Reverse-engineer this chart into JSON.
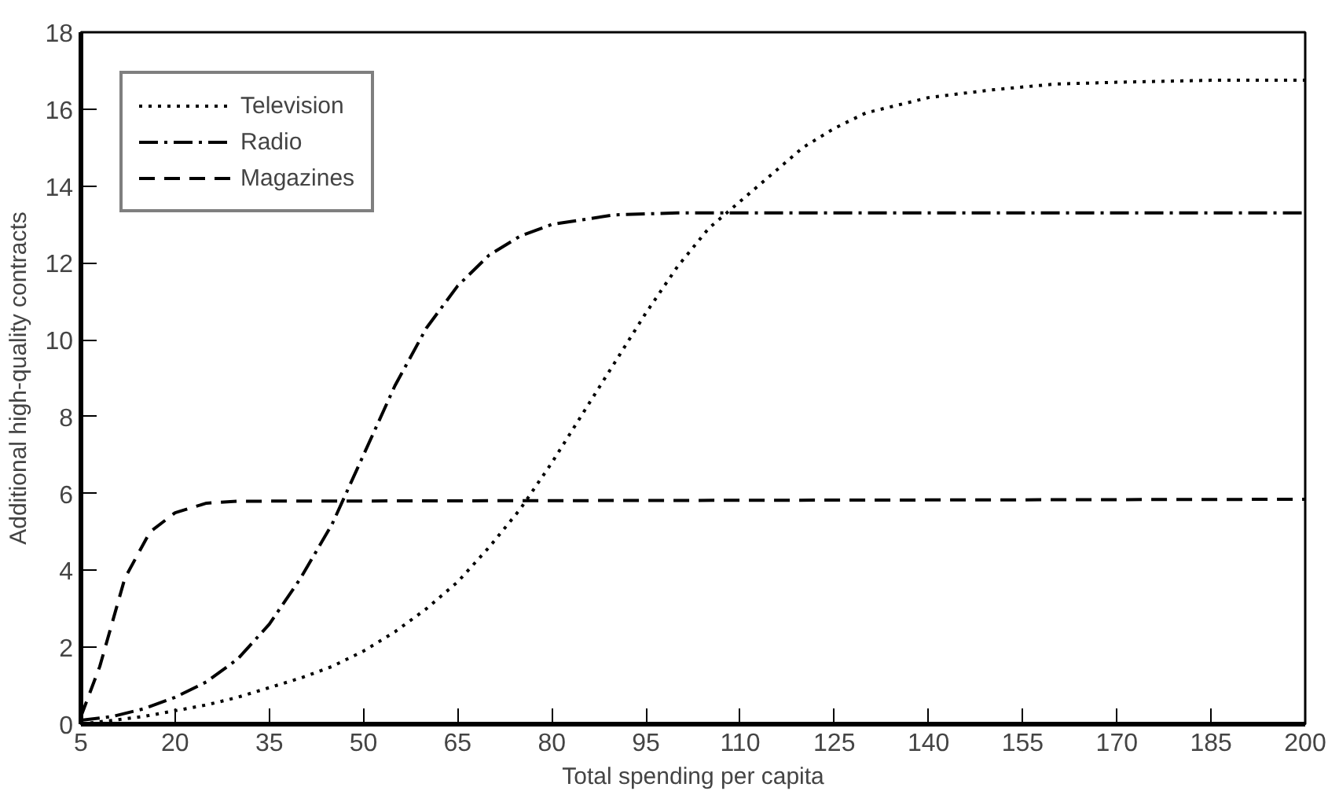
{
  "chart_data": {
    "type": "line",
    "xlabel": "Total spending per capita",
    "ylabel": "Additional high-quality contracts",
    "xlim": [
      5,
      200
    ],
    "ylim": [
      0,
      18
    ],
    "xticks": [
      5,
      20,
      35,
      50,
      65,
      80,
      95,
      110,
      125,
      140,
      155,
      170,
      185,
      200
    ],
    "yticks": [
      0,
      2,
      4,
      6,
      8,
      10,
      12,
      14,
      16,
      18
    ],
    "grid": false,
    "legend": "top left",
    "marker": "none",
    "series": [
      {
        "name": "Television",
        "color": "#000000",
        "line_style": "dotted",
        "x": [
          5,
          15,
          20,
          25,
          30,
          35,
          40,
          45,
          50,
          55,
          60,
          65,
          70,
          75,
          80,
          85,
          90,
          95,
          100,
          105,
          110,
          115,
          120,
          125,
          130,
          140,
          150,
          160,
          170,
          185,
          200
        ],
        "values": [
          0,
          0.2,
          0.35,
          0.5,
          0.7,
          0.95,
          1.2,
          1.5,
          1.9,
          2.4,
          3.0,
          3.7,
          4.6,
          5.6,
          6.8,
          8.1,
          9.4,
          10.7,
          11.9,
          12.9,
          13.6,
          14.3,
          15.0,
          15.5,
          15.9,
          16.3,
          16.5,
          16.65,
          16.7,
          16.75,
          16.75
        ]
      },
      {
        "name": "Radio",
        "color": "#000000",
        "line_style": "dashdot",
        "x": [
          5,
          10,
          15,
          20,
          25,
          30,
          35,
          40,
          45,
          50,
          55,
          60,
          65,
          70,
          75,
          80,
          90,
          100,
          200
        ],
        "values": [
          0.1,
          0.2,
          0.4,
          0.7,
          1.1,
          1.7,
          2.6,
          3.8,
          5.2,
          7.0,
          8.8,
          10.3,
          11.4,
          12.2,
          12.7,
          13.0,
          13.25,
          13.3,
          13.3
        ]
      },
      {
        "name": "Magazines",
        "color": "#000000",
        "line_style": "dashed",
        "x": [
          5,
          8,
          12,
          16,
          20,
          25,
          30,
          200
        ],
        "values": [
          0.2,
          1.5,
          3.8,
          5.0,
          5.5,
          5.75,
          5.8,
          5.85
        ]
      }
    ]
  }
}
